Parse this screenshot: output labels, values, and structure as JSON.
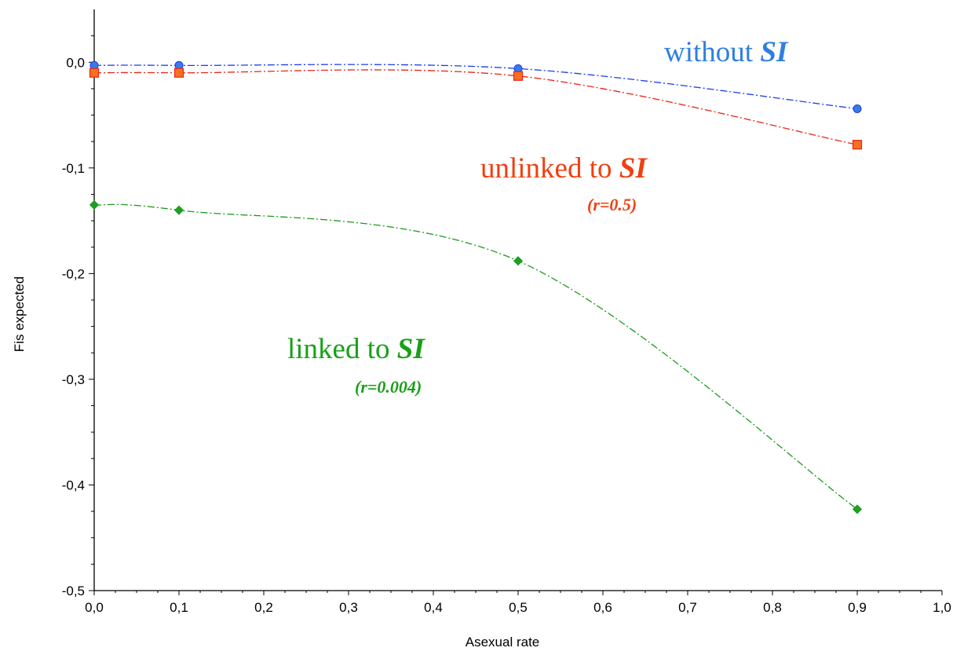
{
  "chart_data": {
    "type": "line",
    "xlabel": "Asexual rate",
    "ylabel": "Fis expected",
    "xlim": [
      0,
      1
    ],
    "ylim": [
      -0.5,
      0.05
    ],
    "x_ticks": [
      0,
      0.1,
      0.2,
      0.3,
      0.4,
      0.5,
      0.6,
      0.7,
      0.8,
      0.9,
      1.0
    ],
    "x_tick_labels": [
      "0,0",
      "0,1",
      "0,2",
      "0,3",
      "0,4",
      "0,5",
      "0,6",
      "0,7",
      "0,8",
      "0,9",
      "1,0"
    ],
    "y_ticks": [
      0,
      -0.1,
      -0.2,
      -0.3,
      -0.4,
      -0.5
    ],
    "y_tick_labels": [
      "0,0",
      "-0,1",
      "-0,2",
      "-0,3",
      "-0,4",
      "-0,5"
    ],
    "grid": false,
    "series": [
      {
        "key": "without",
        "color": "#1a3cf0",
        "marker_fill": "#3a7ae8",
        "marker": "circle",
        "x": [
          0,
          0.1,
          0.5,
          0.9
        ],
        "y": [
          -0.003,
          -0.003,
          -0.006,
          -0.044
        ]
      },
      {
        "key": "unlinked",
        "color": "#e8231a",
        "marker_fill": "#f7701e",
        "marker": "square",
        "x": [
          0,
          0.1,
          0.5,
          0.9
        ],
        "y": [
          -0.01,
          -0.01,
          -0.013,
          -0.078
        ]
      },
      {
        "key": "linked",
        "color": "#1e9a1e",
        "marker_fill": "#1ea01e",
        "marker": "diamond",
        "x": [
          0,
          0.1,
          0.5,
          0.9
        ],
        "y": [
          -0.135,
          -0.14,
          -0.188,
          -0.423
        ]
      }
    ],
    "annotations": {
      "without": {
        "text": "without ",
        "emph": "SI",
        "color": "#2f7fe0"
      },
      "unlinked": {
        "text": "unlinked to ",
        "emph": "SI",
        "sub": "(r=0.5)",
        "color": "#f04010"
      },
      "linked": {
        "text": "linked to ",
        "emph": "SI",
        "sub": "(r=0.004)",
        "color": "#18a018"
      }
    }
  }
}
